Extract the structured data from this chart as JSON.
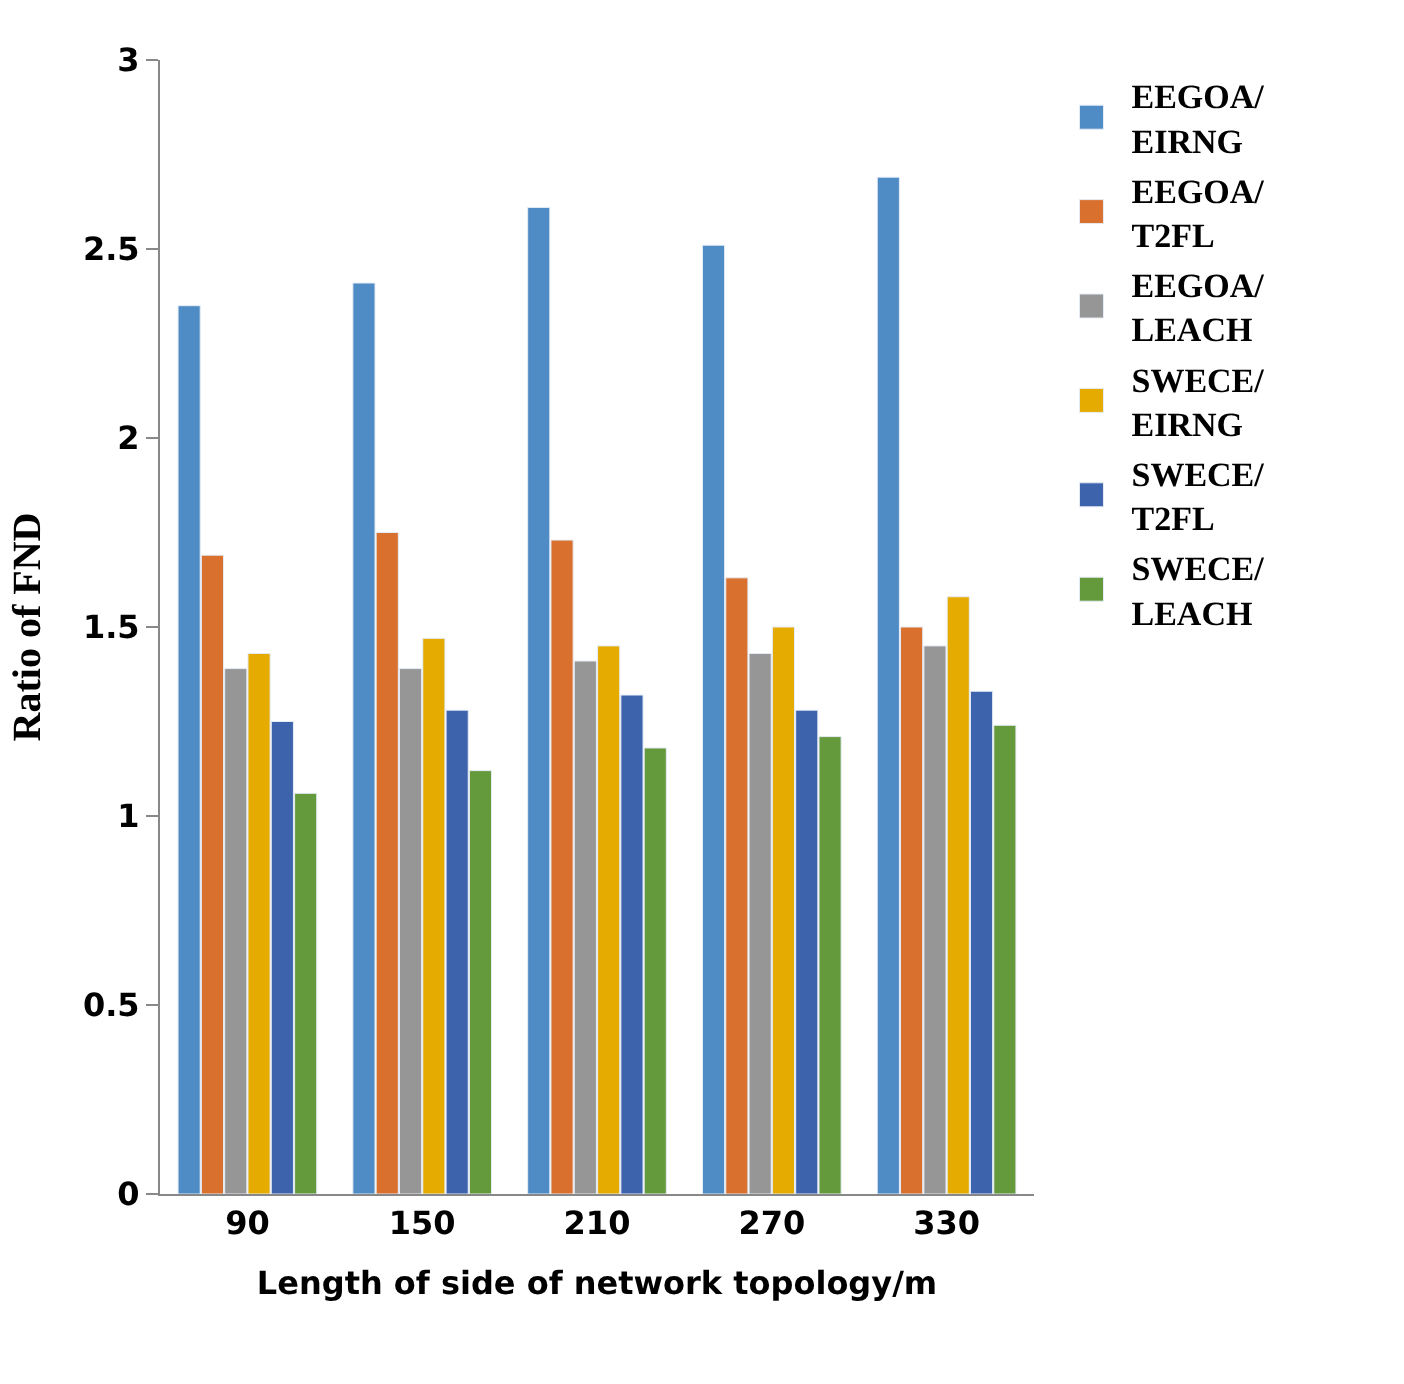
{
  "chart_data": {
    "type": "bar",
    "xlabel": "Length of side of network topology/m",
    "ylabel": "Ratio of FND",
    "categories": [
      "90",
      "150",
      "210",
      "270",
      "330"
    ],
    "series": [
      {
        "name": "EEGOA/\nEIRNG",
        "color": "#4f8bc4",
        "values": [
          2.35,
          2.41,
          2.61,
          2.51,
          2.69
        ]
      },
      {
        "name": "EEGOA/\nT2FL",
        "color": "#d9702e",
        "values": [
          1.69,
          1.75,
          1.73,
          1.63,
          1.5
        ]
      },
      {
        "name": "EEGOA/\nLEACH",
        "color": "#969696",
        "values": [
          1.39,
          1.39,
          1.41,
          1.43,
          1.45
        ]
      },
      {
        "name": "SWECE/\nEIRNG",
        "color": "#e5ab00",
        "values": [
          1.43,
          1.47,
          1.45,
          1.5,
          1.58
        ]
      },
      {
        "name": "SWECE/\nT2FL",
        "color": "#3e63ad",
        "values": [
          1.25,
          1.28,
          1.32,
          1.28,
          1.33
        ]
      },
      {
        "name": "SWECE/\nLEACH",
        "color": "#64993c",
        "values": [
          1.06,
          1.12,
          1.18,
          1.21,
          1.24
        ]
      }
    ],
    "ylim": [
      0,
      3
    ],
    "yticks": [
      0,
      0.5,
      1,
      1.5,
      2,
      2.5,
      3
    ],
    "legend": "right"
  }
}
